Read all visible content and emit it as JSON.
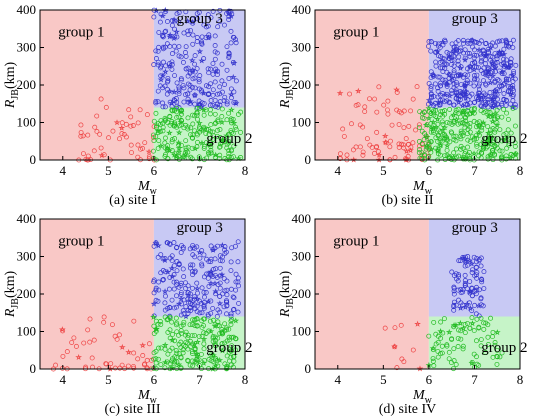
{
  "chart_data": [
    {
      "type": "scatter",
      "caption": "(a) site I",
      "xlabel": "M",
      "xlabel_sub": "w",
      "ylabel": "R",
      "ylabel_sub": "JB",
      "ylabel_unit": "(km)",
      "xlim": [
        3.5,
        8
      ],
      "ylim": [
        0,
        400
      ],
      "xticks": [
        4,
        5,
        6,
        7,
        8
      ],
      "yticks": [
        0,
        100,
        200,
        300,
        400
      ],
      "regions": [
        {
          "label": "group 1",
          "x": [
            3.5,
            6
          ],
          "y": [
            0,
            400
          ],
          "color": "#f9c8c6"
        },
        {
          "label": "group 3",
          "x": [
            6,
            8
          ],
          "y": [
            140,
            400
          ],
          "color": "#c8c9f4"
        },
        {
          "label": "group 2",
          "x": [
            6,
            8
          ],
          "y": [
            0,
            140
          ],
          "color": "#c6f4c8"
        }
      ],
      "group_label_pos": [
        "upper-left",
        "top-right",
        "lower-right"
      ],
      "point_density": [
        0.6,
        1.0,
        1.0
      ],
      "series": [
        {
          "group": "group 1",
          "color": "#ee4444",
          "x_range": [
            4.3,
            6.0
          ],
          "y_range": [
            0,
            170
          ]
        },
        {
          "group": "group 3",
          "color": "#3333cc",
          "x_range": [
            6.0,
            7.8
          ],
          "y_range": [
            140,
            400
          ]
        },
        {
          "group": "group 2",
          "color": "#22bb22",
          "x_range": [
            6.0,
            7.9
          ],
          "y_range": [
            0,
            140
          ]
        }
      ]
    },
    {
      "type": "scatter",
      "caption": "(b) site II",
      "xlabel": "M",
      "xlabel_sub": "w",
      "ylabel": "R",
      "ylabel_sub": "JB",
      "ylabel_unit": "(km)",
      "xlim": [
        3.5,
        8
      ],
      "ylim": [
        0,
        400
      ],
      "xticks": [
        4,
        5,
        6,
        7,
        8
      ],
      "yticks": [
        0,
        100,
        200,
        300,
        400
      ],
      "regions": [
        {
          "label": "group 1",
          "x": [
            3.5,
            6
          ],
          "y": [
            0,
            400
          ],
          "color": "#f9c8c6"
        },
        {
          "label": "group 3",
          "x": [
            6,
            8
          ],
          "y": [
            140,
            400
          ],
          "color": "#c8c9f4"
        },
        {
          "label": "group 2",
          "x": [
            6,
            8
          ],
          "y": [
            0,
            140
          ],
          "color": "#c6f4c8"
        }
      ],
      "group_label_pos": [
        "upper-left",
        "top-right",
        "lower-right"
      ],
      "point_density": [
        1.0,
        1.6,
        1.4
      ],
      "series": [
        {
          "group": "group 1",
          "color": "#ee4444",
          "x_range": [
            4.0,
            6.0
          ],
          "y_range": [
            0,
            200
          ]
        },
        {
          "group": "group 3",
          "color": "#3333cc",
          "x_range": [
            6.0,
            7.9
          ],
          "y_range": [
            140,
            320
          ]
        },
        {
          "group": "group 2",
          "color": "#22bb22",
          "x_range": [
            5.8,
            7.9
          ],
          "y_range": [
            0,
            140
          ]
        }
      ]
    },
    {
      "type": "scatter",
      "caption": "(c) site III",
      "xlabel": "M",
      "xlabel_sub": "w",
      "ylabel": "R",
      "ylabel_sub": "JB",
      "ylabel_unit": "(km)",
      "xlim": [
        3.5,
        8
      ],
      "ylim": [
        0,
        400
      ],
      "xticks": [
        4,
        5,
        6,
        7,
        8
      ],
      "yticks": [
        0,
        100,
        200,
        300,
        400
      ],
      "regions": [
        {
          "label": "group 1",
          "x": [
            3.5,
            6
          ],
          "y": [
            0,
            400
          ],
          "color": "#f9c8c6"
        },
        {
          "label": "group 3",
          "x": [
            6,
            8
          ],
          "y": [
            140,
            400
          ],
          "color": "#c8c9f4"
        },
        {
          "label": "group 2",
          "x": [
            6,
            8
          ],
          "y": [
            0,
            140
          ],
          "color": "#c6f4c8"
        }
      ],
      "group_label_pos": [
        "upper-left",
        "top-right",
        "lower-right"
      ],
      "point_density": [
        0.6,
        0.9,
        1.0
      ],
      "series": [
        {
          "group": "group 1",
          "color": "#ee4444",
          "x_range": [
            3.8,
            6.0
          ],
          "y_range": [
            0,
            140
          ]
        },
        {
          "group": "group 3",
          "color": "#3333cc",
          "x_range": [
            6.0,
            7.9
          ],
          "y_range": [
            140,
            340
          ]
        },
        {
          "group": "group 2",
          "color": "#22bb22",
          "x_range": [
            6.0,
            7.8
          ],
          "y_range": [
            0,
            140
          ]
        }
      ]
    },
    {
      "type": "scatter",
      "caption": "(d) site IV",
      "xlabel": "M",
      "xlabel_sub": "w",
      "ylabel": "R",
      "ylabel_sub": "JB",
      "ylabel_unit": "(km)",
      "xlim": [
        3.5,
        8
      ],
      "ylim": [
        0,
        400
      ],
      "xticks": [
        4,
        5,
        6,
        7,
        8
      ],
      "yticks": [
        0,
        100,
        200,
        300,
        400
      ],
      "regions": [
        {
          "label": "group 1",
          "x": [
            3.5,
            6
          ],
          "y": [
            0,
            400
          ],
          "color": "#f9c8c6"
        },
        {
          "label": "group 3",
          "x": [
            6,
            8
          ],
          "y": [
            140,
            400
          ],
          "color": "#c8c9f4"
        },
        {
          "label": "group 2",
          "x": [
            6,
            8
          ],
          "y": [
            0,
            140
          ],
          "color": "#c6f4c8"
        }
      ],
      "group_label_pos": [
        "upper-left",
        "top-right",
        "lower-right"
      ],
      "point_density": [
        0.12,
        0.35,
        0.4
      ],
      "series": [
        {
          "group": "group 1",
          "color": "#ee4444",
          "x_range": [
            5.0,
            5.9
          ],
          "y_range": [
            0,
            120
          ]
        },
        {
          "group": "group 3",
          "color": "#3333cc",
          "x_range": [
            6.5,
            7.2
          ],
          "y_range": [
            140,
            300
          ]
        },
        {
          "group": "group 2",
          "color": "#22bb22",
          "x_range": [
            6.0,
            7.6
          ],
          "y_range": [
            0,
            140
          ]
        }
      ]
    }
  ]
}
